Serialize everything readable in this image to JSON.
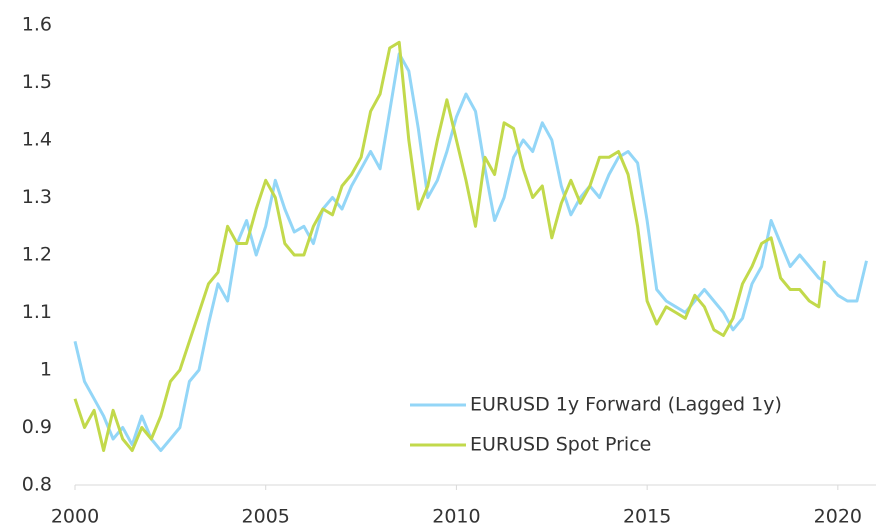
{
  "chart_data": {
    "type": "line",
    "xlim": [
      2000,
      2021
    ],
    "xticks": [
      2000,
      2005,
      2010,
      2015,
      2020
    ],
    "ylim": [
      0.8,
      1.6
    ],
    "yticks": [
      0.8,
      0.9,
      1,
      1.1,
      1.2,
      1.3,
      1.4,
      1.5,
      1.6
    ],
    "grid": false,
    "legend": "lower right",
    "series": [
      {
        "name": "EURUSD 1y Forward (Lagged 1y)",
        "color": "#93d6f7",
        "x": [
          2000,
          2000.25,
          2000.5,
          2000.75,
          2001,
          2001.25,
          2001.5,
          2001.75,
          2002,
          2002.25,
          2002.5,
          2002.75,
          2003,
          2003.25,
          2003.5,
          2003.75,
          2004,
          2004.25,
          2004.5,
          2004.75,
          2005,
          2005.25,
          2005.5,
          2005.75,
          2006,
          2006.25,
          2006.5,
          2006.75,
          2007,
          2007.25,
          2007.5,
          2007.75,
          2008,
          2008.25,
          2008.5,
          2008.75,
          2009,
          2009.25,
          2009.5,
          2009.75,
          2010,
          2010.25,
          2010.5,
          2010.75,
          2011,
          2011.25,
          2011.5,
          2011.75,
          2012,
          2012.25,
          2012.5,
          2012.75,
          2013,
          2013.25,
          2013.5,
          2013.75,
          2014,
          2014.25,
          2014.5,
          2014.75,
          2015,
          2015.25,
          2015.5,
          2015.75,
          2016,
          2016.25,
          2016.5,
          2016.75,
          2017,
          2017.25,
          2017.5,
          2017.75,
          2018,
          2018.25,
          2018.5,
          2018.75,
          2019,
          2019.25,
          2019.5,
          2019.75,
          2020,
          2020.25,
          2020.5,
          2020.75
        ],
        "values": [
          1.05,
          0.98,
          0.95,
          0.92,
          0.88,
          0.9,
          0.87,
          0.92,
          0.88,
          0.86,
          0.88,
          0.9,
          0.98,
          1.0,
          1.08,
          1.15,
          1.12,
          1.22,
          1.26,
          1.2,
          1.25,
          1.33,
          1.28,
          1.24,
          1.25,
          1.22,
          1.28,
          1.3,
          1.28,
          1.32,
          1.35,
          1.38,
          1.35,
          1.45,
          1.55,
          1.52,
          1.42,
          1.3,
          1.33,
          1.38,
          1.44,
          1.48,
          1.45,
          1.35,
          1.26,
          1.3,
          1.37,
          1.4,
          1.38,
          1.43,
          1.4,
          1.32,
          1.27,
          1.3,
          1.32,
          1.3,
          1.34,
          1.37,
          1.38,
          1.36,
          1.26,
          1.14,
          1.12,
          1.11,
          1.1,
          1.12,
          1.14,
          1.12,
          1.1,
          1.07,
          1.09,
          1.15,
          1.18,
          1.26,
          1.22,
          1.18,
          1.2,
          1.18,
          1.16,
          1.15,
          1.13,
          1.12,
          1.12,
          1.19
        ]
      },
      {
        "name": "EURUSD Spot Price",
        "color": "#c2d94b",
        "x": [
          2000,
          2000.25,
          2000.5,
          2000.75,
          2001,
          2001.25,
          2001.5,
          2001.75,
          2002,
          2002.25,
          2002.5,
          2002.75,
          2003,
          2003.25,
          2003.5,
          2003.75,
          2004,
          2004.25,
          2004.5,
          2004.75,
          2005,
          2005.25,
          2005.5,
          2005.75,
          2006,
          2006.25,
          2006.5,
          2006.75,
          2007,
          2007.25,
          2007.5,
          2007.75,
          2008,
          2008.25,
          2008.5,
          2008.75,
          2009,
          2009.25,
          2009.5,
          2009.75,
          2010,
          2010.25,
          2010.5,
          2010.75,
          2011,
          2011.25,
          2011.5,
          2011.75,
          2012,
          2012.25,
          2012.5,
          2012.75,
          2013,
          2013.25,
          2013.5,
          2013.75,
          2014,
          2014.25,
          2014.5,
          2014.75,
          2015,
          2015.25,
          2015.5,
          2015.75,
          2016,
          2016.25,
          2016.5,
          2016.75,
          2017,
          2017.25,
          2017.5,
          2017.75,
          2018,
          2018.25,
          2018.5,
          2018.75,
          2019,
          2019.25,
          2019.5,
          2019.65
        ],
        "values": [
          0.95,
          0.9,
          0.93,
          0.86,
          0.93,
          0.88,
          0.86,
          0.9,
          0.88,
          0.92,
          0.98,
          1.0,
          1.05,
          1.1,
          1.15,
          1.17,
          1.25,
          1.22,
          1.22,
          1.28,
          1.33,
          1.3,
          1.22,
          1.2,
          1.2,
          1.25,
          1.28,
          1.27,
          1.32,
          1.34,
          1.37,
          1.45,
          1.48,
          1.56,
          1.57,
          1.4,
          1.28,
          1.32,
          1.4,
          1.47,
          1.4,
          1.33,
          1.25,
          1.37,
          1.34,
          1.43,
          1.42,
          1.35,
          1.3,
          1.32,
          1.23,
          1.29,
          1.33,
          1.29,
          1.32,
          1.37,
          1.37,
          1.38,
          1.34,
          1.25,
          1.12,
          1.08,
          1.11,
          1.1,
          1.09,
          1.13,
          1.11,
          1.07,
          1.06,
          1.09,
          1.15,
          1.18,
          1.22,
          1.23,
          1.16,
          1.14,
          1.14,
          1.12,
          1.11,
          1.19
        ]
      }
    ]
  }
}
